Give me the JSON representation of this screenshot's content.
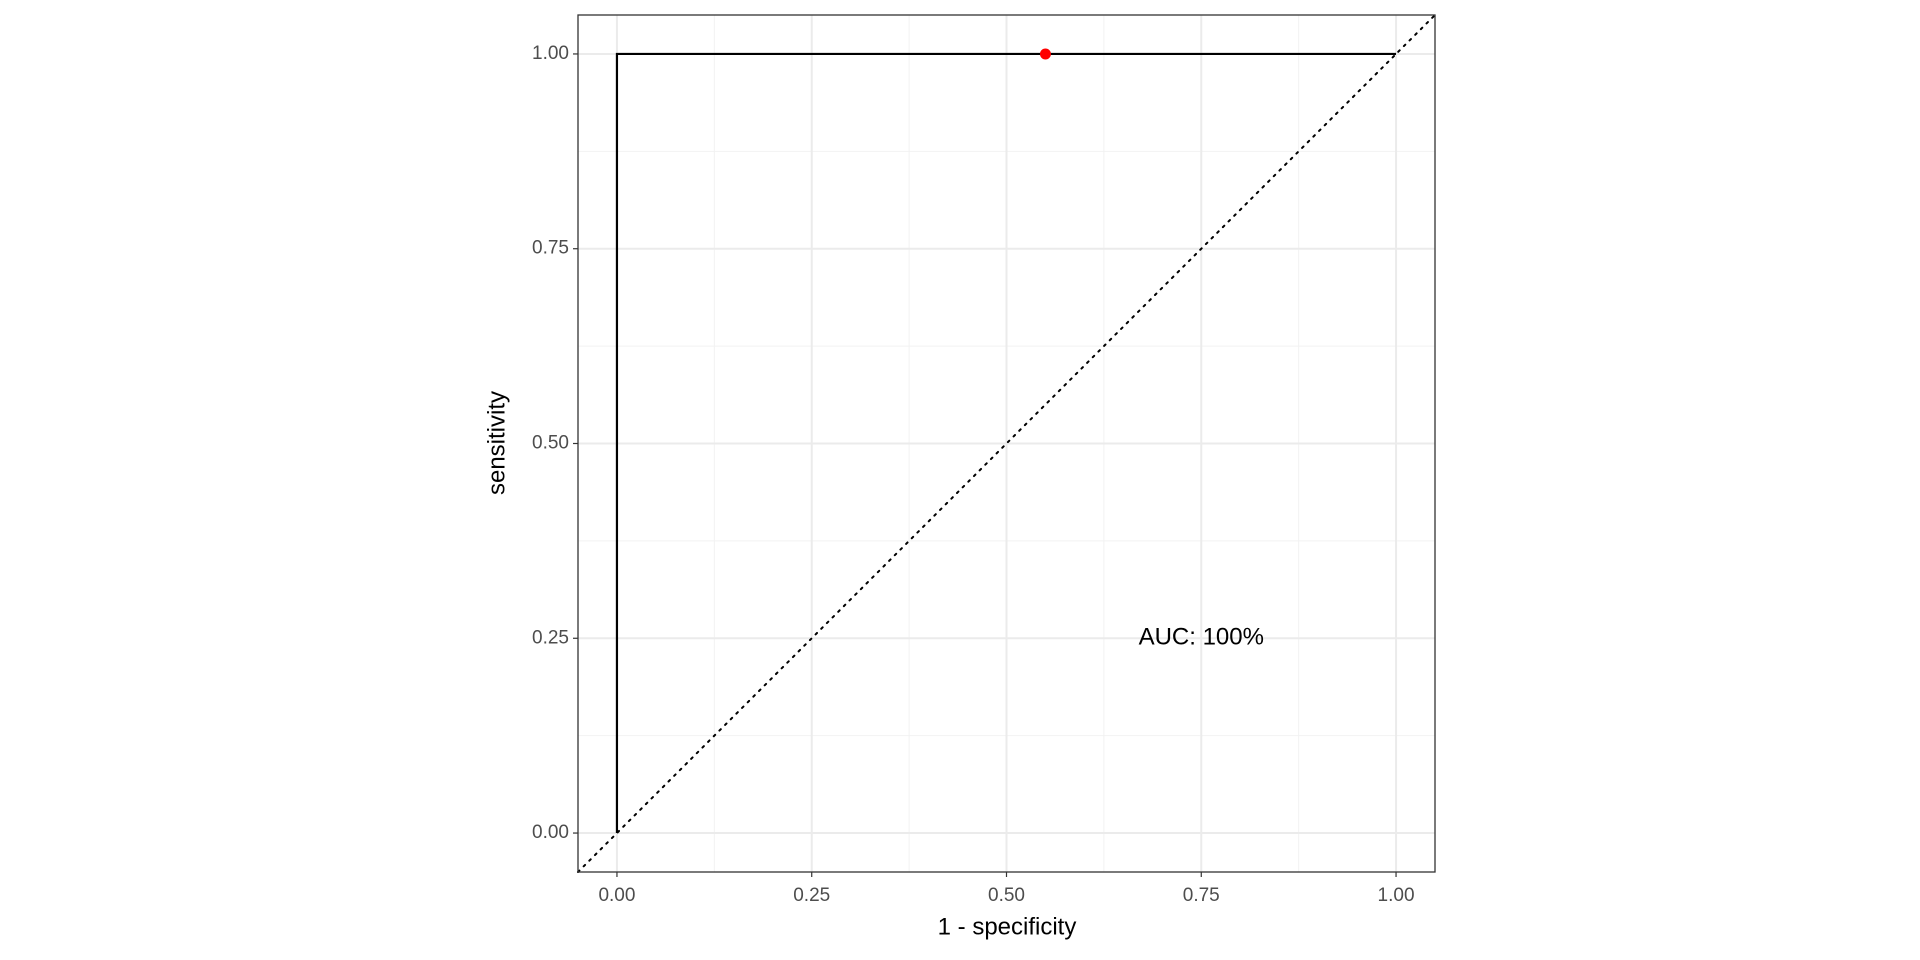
{
  "chart_data": {
    "type": "line",
    "xlabel": "1 - specificity",
    "ylabel": "sensitivity",
    "xlim": [
      -0.05,
      1.05
    ],
    "ylim": [
      -0.05,
      1.05
    ],
    "xticks": [
      {
        "value": 0,
        "label": "0.00"
      },
      {
        "value": 0.25,
        "label": "0.25"
      },
      {
        "value": 0.5,
        "label": "0.50"
      },
      {
        "value": 0.75,
        "label": "0.75"
      },
      {
        "value": 1,
        "label": "1.00"
      }
    ],
    "yticks": [
      {
        "value": 0,
        "label": "0.00"
      },
      {
        "value": 0.25,
        "label": "0.25"
      },
      {
        "value": 0.5,
        "label": "0.50"
      },
      {
        "value": 0.75,
        "label": "0.75"
      },
      {
        "value": 1,
        "label": "1.00"
      }
    ],
    "xminor": [
      0.125,
      0.375,
      0.625,
      0.875
    ],
    "yminor": [
      0.125,
      0.375,
      0.625,
      0.875
    ],
    "grid": true,
    "diagonal": true,
    "series": [
      {
        "mode": "line",
        "color": "#000000",
        "x": [
          0,
          0,
          1
        ],
        "values": [
          0,
          1,
          1
        ]
      },
      {
        "mode": "markers",
        "color": "#ff0000",
        "x": [
          0.55
        ],
        "values": [
          1
        ]
      }
    ],
    "annotations": [
      {
        "text": "AUC: 100%",
        "x": 0.75,
        "y": 0.25
      }
    ]
  }
}
